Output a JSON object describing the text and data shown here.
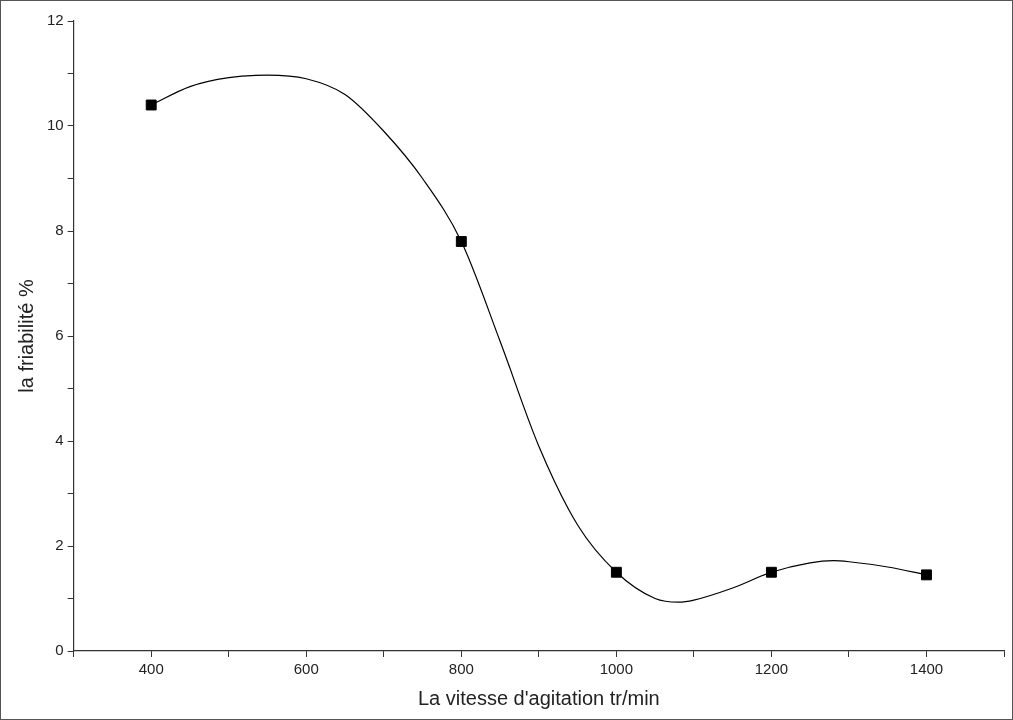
{
  "chart_data": {
    "type": "scatter",
    "xlabel": "La vitesse d'agitation tr/min",
    "ylabel": "la friabilité %",
    "xlim": [
      300,
      1500
    ],
    "xticks": [
      {
        "value": 300,
        "label": null
      },
      400,
      {
        "value": 500,
        "label": null
      },
      600,
      {
        "value": 700,
        "label": null
      },
      800,
      {
        "value": 900,
        "label": null
      },
      1000,
      {
        "value": 1100,
        "label": null
      },
      1200,
      {
        "value": 1300,
        "label": null
      },
      1400,
      {
        "value": 1500,
        "label": null
      }
    ],
    "ylim": [
      0,
      12
    ],
    "yticks": [
      0,
      {
        "value": 1,
        "label": null
      },
      2,
      {
        "value": 3,
        "label": null
      },
      4,
      {
        "value": 5,
        "label": null
      },
      6,
      {
        "value": 7,
        "label": null
      },
      8,
      {
        "value": 9,
        "label": null
      },
      10,
      {
        "value": 11,
        "label": null
      },
      12
    ],
    "grid": false,
    "legend": false,
    "series": [
      {
        "type": "line",
        "marker": "none",
        "line_style": "solid",
        "color": "#000000",
        "x": [
          400,
          450,
          500,
          550,
          600,
          650,
          700,
          750,
          800,
          850,
          900,
          950,
          1000,
          1050,
          1080,
          1100,
          1150,
          1200,
          1250,
          1280,
          1300,
          1350,
          1400
        ],
        "values": [
          10.4,
          10.75,
          10.92,
          10.97,
          10.9,
          10.6,
          9.9,
          9.0,
          7.8,
          5.9,
          3.9,
          2.4,
          1.5,
          1.0,
          0.93,
          0.97,
          1.2,
          1.5,
          1.68,
          1.72,
          1.7,
          1.6,
          1.45
        ]
      },
      {
        "type": "scatter",
        "marker": "square",
        "color": "#000000",
        "x": [
          400,
          800,
          1000,
          1200,
          1400
        ],
        "values": [
          10.4,
          7.8,
          1.5,
          1.5,
          1.45
        ]
      }
    ]
  }
}
